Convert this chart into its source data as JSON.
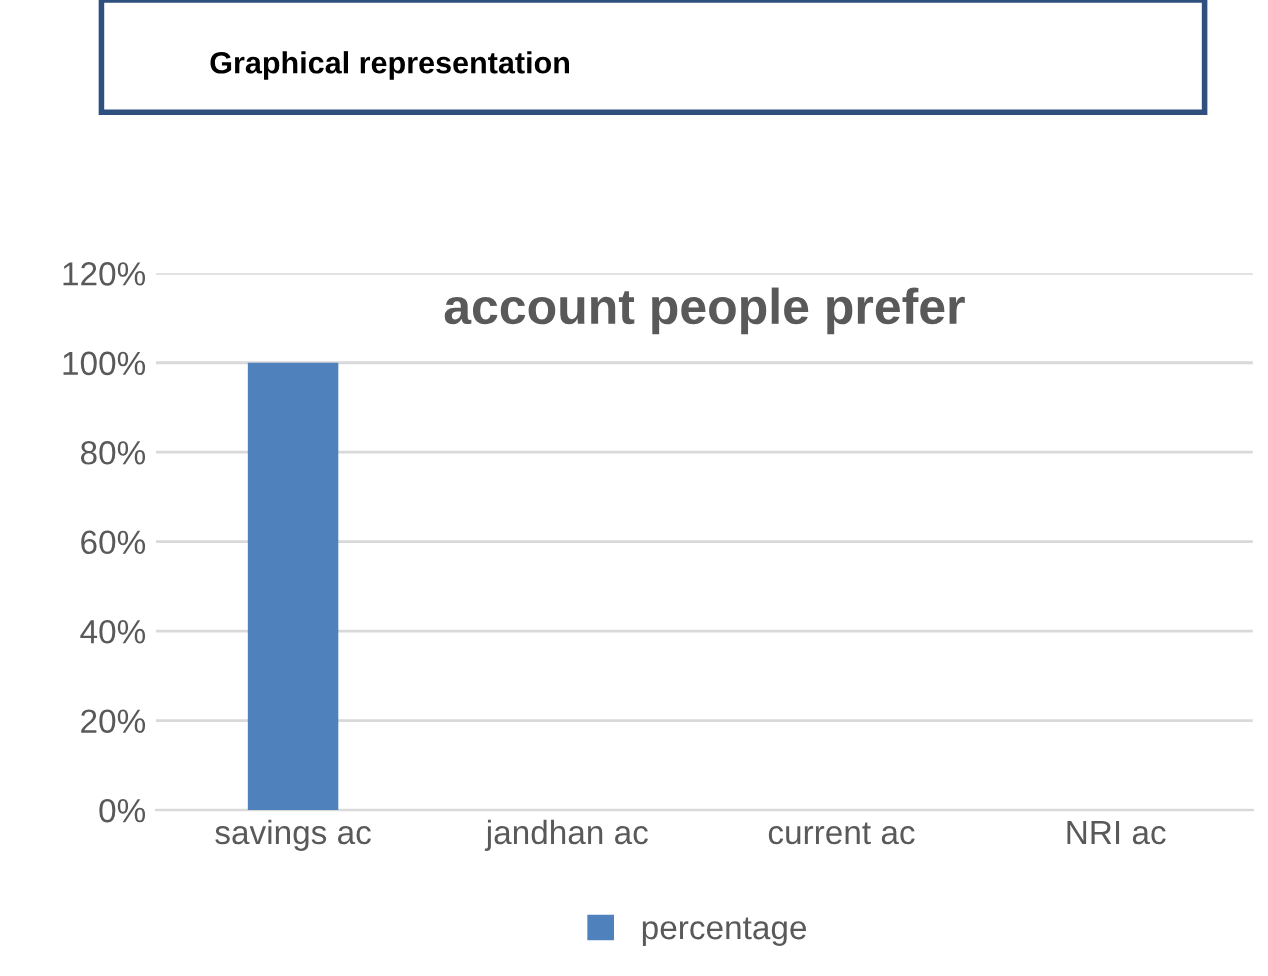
{
  "chart_data": {
    "type": "bar",
    "title": "account people prefer",
    "annotations": [
      "Graphical representation"
    ],
    "categories": [
      "savings ac",
      "jandhan ac",
      "current ac",
      "NRI ac"
    ],
    "series": [
      {
        "name": "percentage",
        "color": "#4f81bd",
        "values": [
          100,
          0,
          0,
          0
        ]
      }
    ],
    "ylim": [
      0,
      120
    ],
    "yticks": [
      {
        "value": 0,
        "label": "0%"
      },
      {
        "value": 20,
        "label": "20%"
      },
      {
        "value": 40,
        "label": "40%"
      },
      {
        "value": 60,
        "label": "60%"
      },
      {
        "value": 80,
        "label": "80%"
      },
      {
        "value": 100,
        "label": "100%"
      },
      {
        "value": 120,
        "label": "120%"
      }
    ],
    "grid": "y",
    "legend": "bottom"
  }
}
